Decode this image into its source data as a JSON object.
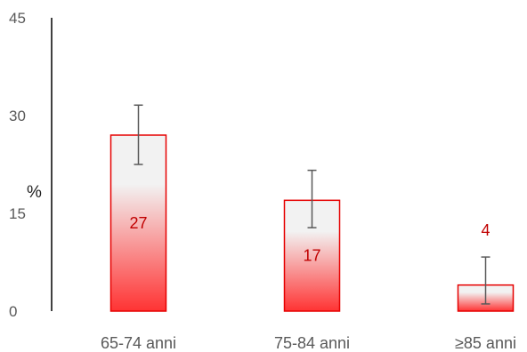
{
  "chart_data": {
    "type": "bar",
    "title": "",
    "xlabel": "",
    "ylabel": "%",
    "ylim": [
      0,
      45
    ],
    "yticks": [
      0,
      15,
      30,
      45
    ],
    "categories": [
      "65-74 anni",
      "75-84 anni",
      "≥85 anni"
    ],
    "values": [
      27,
      17,
      4
    ],
    "data_labels": [
      "27",
      "17",
      "4"
    ],
    "error_low": [
      22.5,
      12.8,
      1.1
    ],
    "error_high": [
      31.6,
      21.6,
      8.3
    ],
    "grid": false,
    "legend": "none",
    "colors": {
      "bar_top": "#f2f2f2",
      "bar_bottom": "#ff3333",
      "bar_border": "#e60000",
      "data_label": "#c00000",
      "error_bar": "#595959",
      "axis": "#000000"
    }
  }
}
